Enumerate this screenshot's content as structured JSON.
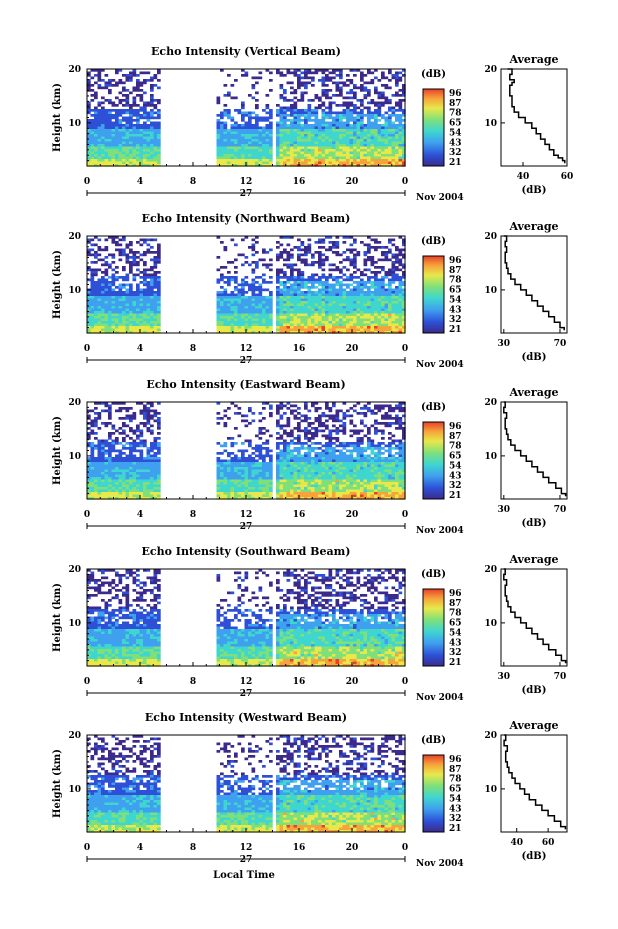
{
  "figure": {
    "time_axis_label": "Local Time",
    "date_day": "27",
    "date_month_year": "Nov 2004"
  },
  "chart_data": [
    {
      "type": "heatmap",
      "title": "Echo Intensity (Vertical Beam)",
      "ylabel": "Height (km)",
      "xlim": [
        0,
        24
      ],
      "ylim": [
        2,
        20
      ],
      "xticks": [
        "0",
        "4",
        "8",
        "12",
        "16",
        "20",
        "0"
      ],
      "yticks": [
        "10",
        "20"
      ],
      "data_gaps_hours": [
        [
          5.5,
          9.6
        ],
        [
          14.0,
          14.25
        ]
      ],
      "colorbar": {
        "unit": "(dB)",
        "levels": [
          "96",
          "87",
          "78",
          "65",
          "54",
          "43",
          "32",
          "21"
        ]
      },
      "profile": {
        "title": "Average",
        "xlabel": "(dB)",
        "xlim": [
          30,
          60
        ],
        "xticks": [
          "40",
          "60"
        ],
        "yticks": [
          "10",
          "20"
        ],
        "points": [
          [
            59,
            2.5
          ],
          [
            58,
            3
          ],
          [
            56,
            3.5
          ],
          [
            54,
            4
          ],
          [
            52,
            5
          ],
          [
            50,
            6
          ],
          [
            48,
            7
          ],
          [
            46,
            8
          ],
          [
            44,
            9
          ],
          [
            41,
            10
          ],
          [
            38,
            11
          ],
          [
            36,
            12
          ],
          [
            35,
            13
          ],
          [
            35,
            14
          ],
          [
            34,
            15
          ],
          [
            34,
            16
          ],
          [
            35,
            17
          ],
          [
            36,
            17.5
          ],
          [
            34,
            18
          ],
          [
            35,
            19
          ],
          [
            33,
            20
          ]
        ]
      }
    },
    {
      "type": "heatmap",
      "title": "Echo Intensity (Northward Beam)",
      "ylabel": "Height (km)",
      "xlim": [
        0,
        24
      ],
      "ylim": [
        2,
        20
      ],
      "xticks": [
        "0",
        "4",
        "8",
        "12",
        "16",
        "20",
        "0"
      ],
      "yticks": [
        "10",
        "20"
      ],
      "data_gaps_hours": [
        [
          5.5,
          9.6
        ],
        [
          14.0,
          14.25
        ]
      ],
      "colorbar": {
        "unit": "(dB)",
        "levels": [
          "96",
          "87",
          "78",
          "65",
          "54",
          "43",
          "32",
          "21"
        ]
      },
      "profile": {
        "title": "Average",
        "xlabel": "(dB)",
        "xlim": [
          28,
          75
        ],
        "xticks": [
          "30",
          "70"
        ],
        "yticks": [
          "10",
          "20"
        ],
        "points": [
          [
            73,
            2.5
          ],
          [
            70,
            3
          ],
          [
            66,
            4
          ],
          [
            62,
            5
          ],
          [
            58,
            6
          ],
          [
            54,
            7
          ],
          [
            50,
            8
          ],
          [
            46,
            9
          ],
          [
            42,
            10
          ],
          [
            38,
            11
          ],
          [
            35,
            12
          ],
          [
            33,
            13
          ],
          [
            32,
            14
          ],
          [
            31,
            15
          ],
          [
            31,
            16
          ],
          [
            32,
            17
          ],
          [
            31,
            18
          ],
          [
            32,
            19
          ],
          [
            30,
            20
          ]
        ]
      }
    },
    {
      "type": "heatmap",
      "title": "Echo Intensity (Eastward Beam)",
      "ylabel": "Height (km)",
      "xlim": [
        0,
        24
      ],
      "ylim": [
        2,
        20
      ],
      "xticks": [
        "0",
        "4",
        "8",
        "12",
        "16",
        "20",
        "0"
      ],
      "yticks": [
        "10",
        "20"
      ],
      "data_gaps_hours": [
        [
          5.5,
          9.6
        ],
        [
          14.0,
          14.25
        ]
      ],
      "colorbar": {
        "unit": "(dB)",
        "levels": [
          "96",
          "87",
          "78",
          "65",
          "54",
          "43",
          "32",
          "21"
        ]
      },
      "profile": {
        "title": "Average",
        "xlabel": "(dB)",
        "xlim": [
          28,
          75
        ],
        "xticks": [
          "30",
          "70"
        ],
        "yticks": [
          "10",
          "20"
        ],
        "points": [
          [
            74,
            2.5
          ],
          [
            71,
            3
          ],
          [
            67,
            4
          ],
          [
            62,
            5
          ],
          [
            58,
            6
          ],
          [
            54,
            7
          ],
          [
            50,
            8
          ],
          [
            46,
            9
          ],
          [
            42,
            10
          ],
          [
            38,
            11
          ],
          [
            35,
            12
          ],
          [
            33,
            13
          ],
          [
            32,
            14
          ],
          [
            31,
            15
          ],
          [
            31,
            16
          ],
          [
            32,
            17
          ],
          [
            30,
            18
          ],
          [
            31,
            19
          ],
          [
            30,
            20
          ]
        ]
      }
    },
    {
      "type": "heatmap",
      "title": "Echo Intensity (Southward Beam)",
      "ylabel": "Height (km)",
      "xlim": [
        0,
        24
      ],
      "ylim": [
        2,
        20
      ],
      "xticks": [
        "0",
        "4",
        "8",
        "12",
        "16",
        "20",
        "0"
      ],
      "yticks": [
        "10",
        "20"
      ],
      "data_gaps_hours": [
        [
          5.5,
          9.6
        ],
        [
          14.0,
          14.25
        ]
      ],
      "colorbar": {
        "unit": "(dB)",
        "levels": [
          "96",
          "87",
          "78",
          "65",
          "54",
          "43",
          "32",
          "21"
        ]
      },
      "profile": {
        "title": "Average",
        "xlabel": "(dB)",
        "xlim": [
          28,
          75
        ],
        "xticks": [
          "30",
          "70"
        ],
        "yticks": [
          "10",
          "20"
        ],
        "points": [
          [
            74,
            2.5
          ],
          [
            71,
            3
          ],
          [
            67,
            4
          ],
          [
            62,
            5
          ],
          [
            58,
            6
          ],
          [
            54,
            7
          ],
          [
            50,
            8
          ],
          [
            46,
            9
          ],
          [
            42,
            10
          ],
          [
            38,
            11
          ],
          [
            35,
            12
          ],
          [
            33,
            13
          ],
          [
            32,
            14
          ],
          [
            31,
            15
          ],
          [
            31,
            16
          ],
          [
            32,
            17
          ],
          [
            30,
            18
          ],
          [
            31,
            19
          ],
          [
            30,
            20
          ]
        ]
      }
    },
    {
      "type": "heatmap",
      "title": "Echo Intensity (Westward Beam)",
      "ylabel": "Height (km)",
      "xlim": [
        0,
        24
      ],
      "ylim": [
        2,
        20
      ],
      "xticks": [
        "0",
        "4",
        "8",
        "12",
        "16",
        "20",
        "0"
      ],
      "yticks": [
        "10",
        "20"
      ],
      "data_gaps_hours": [
        [
          5.5,
          9.6
        ],
        [
          14.0,
          14.25
        ]
      ],
      "colorbar": {
        "unit": "(dB)",
        "levels": [
          "96",
          "87",
          "78",
          "65",
          "54",
          "43",
          "32",
          "21"
        ]
      },
      "profile": {
        "title": "Average",
        "xlabel": "(dB)",
        "xlim": [
          30,
          72
        ],
        "xticks": [
          "40",
          "60"
        ],
        "yticks": [
          "10",
          "20"
        ],
        "points": [
          [
            71,
            2.5
          ],
          [
            68,
            3
          ],
          [
            64,
            4
          ],
          [
            60,
            5
          ],
          [
            56,
            6
          ],
          [
            52,
            7
          ],
          [
            48,
            8
          ],
          [
            45,
            9
          ],
          [
            42,
            10
          ],
          [
            39,
            11
          ],
          [
            37,
            12
          ],
          [
            35,
            13
          ],
          [
            34,
            14
          ],
          [
            33,
            15
          ],
          [
            33,
            16
          ],
          [
            34,
            17
          ],
          [
            32,
            18
          ],
          [
            33,
            19
          ],
          [
            32,
            20
          ]
        ]
      }
    }
  ],
  "colors": {
    "colormap": [
      "#3b2a8c",
      "#2d50d6",
      "#3fa0f0",
      "#3fd6d0",
      "#7fe07a",
      "#e8e84a",
      "#f7a23a",
      "#e8402a"
    ]
  }
}
